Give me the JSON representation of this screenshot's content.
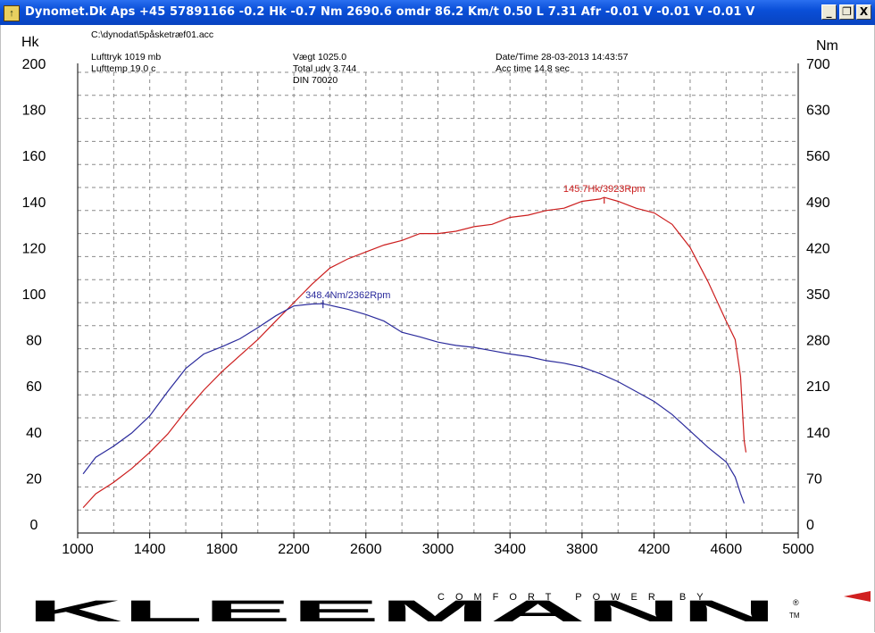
{
  "window": {
    "title": "Dynomet.Dk Aps +45 57891166  -0.2 Hk -0.7 Nm 2690.6 omdr 86.2 Km/t   0.50 L 7.31 Afr -0.01 V -0.01 V -0.01 V",
    "minimize_label": "_",
    "maximize_label": "❐",
    "close_label": "X"
  },
  "info": {
    "file": "C:\\dynodat\\5påsketræf01.acc",
    "lufttryk": "Lufttryk  1019 mb",
    "lufttemp": "Lufttemp  19.0 c",
    "vaegt": "Vægt    1025.0",
    "total_udv": "Total udv 3.744",
    "din": "DIN 70020",
    "datetime": "Date/Time  28-03-2013 14:43:57",
    "acctime": "Acc time   14.8 sec"
  },
  "chart_data": {
    "type": "line",
    "xlim": [
      1000,
      5000
    ],
    "x_ticks": [
      "1000",
      "1400",
      "1800",
      "2200",
      "2600",
      "3000",
      "3400",
      "3800",
      "4200",
      "4600",
      "5000"
    ],
    "y_left": {
      "label": "Hk",
      "lim": [
        0,
        200
      ],
      "ticks": [
        "0",
        "20",
        "40",
        "60",
        "80",
        "100",
        "120",
        "140",
        "160",
        "180",
        "200"
      ]
    },
    "y_right": {
      "label": "Nm",
      "lim": [
        0,
        700
      ],
      "ticks": [
        "0",
        "70",
        "140",
        "210",
        "280",
        "350",
        "420",
        "490",
        "560",
        "630",
        "700"
      ]
    },
    "grid": true,
    "series": [
      {
        "axis": "left",
        "color": "#cc1e1e",
        "points": [
          [
            1030,
            11
          ],
          [
            1100,
            17
          ],
          [
            1200,
            22
          ],
          [
            1300,
            28
          ],
          [
            1400,
            35
          ],
          [
            1500,
            43
          ],
          [
            1600,
            53
          ],
          [
            1700,
            62
          ],
          [
            1800,
            70
          ],
          [
            1900,
            77
          ],
          [
            2000,
            84
          ],
          [
            2100,
            92
          ],
          [
            2200,
            100
          ],
          [
            2300,
            108
          ],
          [
            2400,
            115
          ],
          [
            2500,
            119
          ],
          [
            2600,
            122
          ],
          [
            2700,
            125
          ],
          [
            2800,
            127
          ],
          [
            2900,
            130
          ],
          [
            3000,
            130
          ],
          [
            3100,
            131
          ],
          [
            3200,
            133
          ],
          [
            3300,
            134
          ],
          [
            3400,
            137
          ],
          [
            3500,
            138
          ],
          [
            3600,
            140
          ],
          [
            3700,
            141
          ],
          [
            3800,
            144
          ],
          [
            3900,
            145
          ],
          [
            3923,
            145.7
          ],
          [
            4000,
            144
          ],
          [
            4100,
            141
          ],
          [
            4200,
            139
          ],
          [
            4300,
            134
          ],
          [
            4400,
            124
          ],
          [
            4500,
            109
          ],
          [
            4600,
            92
          ],
          [
            4650,
            84
          ],
          [
            4680,
            68
          ],
          [
            4700,
            40
          ],
          [
            4710,
            35
          ]
        ]
      },
      {
        "axis": "right",
        "color": "#2b2b9c",
        "points": [
          [
            1030,
            90
          ],
          [
            1100,
            115
          ],
          [
            1200,
            132
          ],
          [
            1300,
            152
          ],
          [
            1400,
            178
          ],
          [
            1500,
            215
          ],
          [
            1600,
            250
          ],
          [
            1700,
            272
          ],
          [
            1800,
            283
          ],
          [
            1900,
            295
          ],
          [
            2000,
            312
          ],
          [
            2100,
            330
          ],
          [
            2200,
            345
          ],
          [
            2300,
            348
          ],
          [
            2362,
            348.4
          ],
          [
            2500,
            340
          ],
          [
            2600,
            332
          ],
          [
            2700,
            322
          ],
          [
            2800,
            305
          ],
          [
            2900,
            298
          ],
          [
            3000,
            290
          ],
          [
            3100,
            285
          ],
          [
            3200,
            282
          ],
          [
            3300,
            277
          ],
          [
            3400,
            272
          ],
          [
            3500,
            268
          ],
          [
            3600,
            262
          ],
          [
            3700,
            258
          ],
          [
            3800,
            252
          ],
          [
            3900,
            242
          ],
          [
            4000,
            230
          ],
          [
            4100,
            215
          ],
          [
            4200,
            200
          ],
          [
            4300,
            180
          ],
          [
            4400,
            155
          ],
          [
            4500,
            130
          ],
          [
            4600,
            108
          ],
          [
            4650,
            85
          ],
          [
            4680,
            60
          ],
          [
            4700,
            45
          ]
        ]
      }
    ],
    "peak_hp_label": "145.7Hk/3923Rpm",
    "peak_nm_label": "348.4Nm/2362Rpm"
  },
  "logo": {
    "brand": "KLEEMANN",
    "tagline": "COMFORT POWER BY",
    "registered": "®",
    "tm": "TM"
  }
}
